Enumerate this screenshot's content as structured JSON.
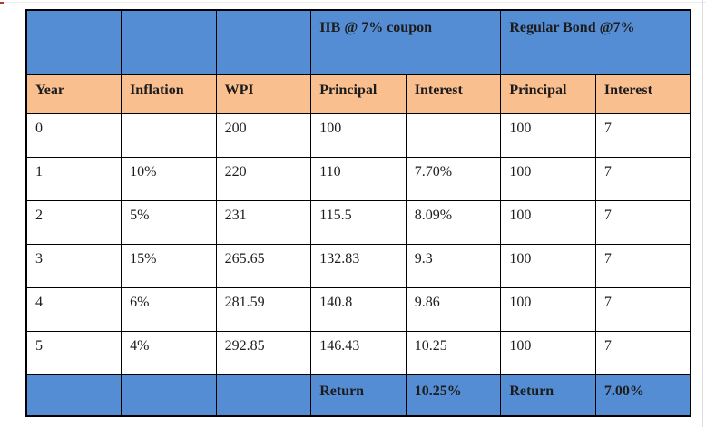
{
  "colors": {
    "header_blue": "#548dd4",
    "header_orange": "#fabf8f",
    "border_black": "#000000",
    "text": "#1c1c1c",
    "top_hairline": "#ececec",
    "right_hairline": "#dcdcdc",
    "artifact_red": "#b03a2e"
  },
  "table": {
    "group_headers": [
      {
        "label": "",
        "span": 1
      },
      {
        "label": "",
        "span": 1
      },
      {
        "label": "",
        "span": 1
      },
      {
        "label": "IIB @ 7% coupon",
        "span": 2
      },
      {
        "label": "Regular Bond @7%",
        "span": 2
      }
    ],
    "columns": [
      "Year",
      "Inflation",
      "WPI",
      "Principal",
      "Interest",
      "Principal",
      "Interest"
    ],
    "rows": [
      [
        "0",
        "",
        "200",
        "100",
        "",
        "100",
        "7"
      ],
      [
        "1",
        "10%",
        "220",
        "110",
        "7.70%",
        "100",
        "7"
      ],
      [
        "2",
        "5%",
        "231",
        "115.5",
        "8.09%",
        "100",
        "7"
      ],
      [
        "3",
        "15%",
        "265.65",
        "132.83",
        "9.3",
        "100",
        "7"
      ],
      [
        "4",
        "6%",
        "281.59",
        "140.8",
        "9.86",
        "100",
        "7"
      ],
      [
        "5",
        "4%",
        "292.85",
        "146.43",
        "10.25",
        "100",
        "7"
      ]
    ],
    "footer": [
      "",
      "",
      "",
      "Return",
      "10.25%",
      "Return",
      "7.00%"
    ]
  },
  "chart_data": {
    "type": "table",
    "title": "IIB @ 7% coupon vs Regular Bond @7%",
    "columns": [
      "Year",
      "Inflation",
      "WPI",
      "IIB Principal",
      "IIB Interest",
      "Regular Principal",
      "Regular Interest"
    ],
    "rows": [
      [
        "0",
        "",
        "200",
        "100",
        "",
        "100",
        "7"
      ],
      [
        "1",
        "10%",
        "220",
        "110",
        "7.70%",
        "100",
        "7"
      ],
      [
        "2",
        "5%",
        "231",
        "115.5",
        "8.09%",
        "100",
        "7"
      ],
      [
        "3",
        "15%",
        "265.65",
        "132.83",
        "9.3",
        "100",
        "7"
      ],
      [
        "4",
        "6%",
        "281.59",
        "140.8",
        "9.86",
        "100",
        "7"
      ],
      [
        "5",
        "4%",
        "292.85",
        "146.43",
        "10.25",
        "100",
        "7"
      ]
    ],
    "summary": {
      "iib_return": "10.25%",
      "regular_return": "7.00%"
    }
  }
}
